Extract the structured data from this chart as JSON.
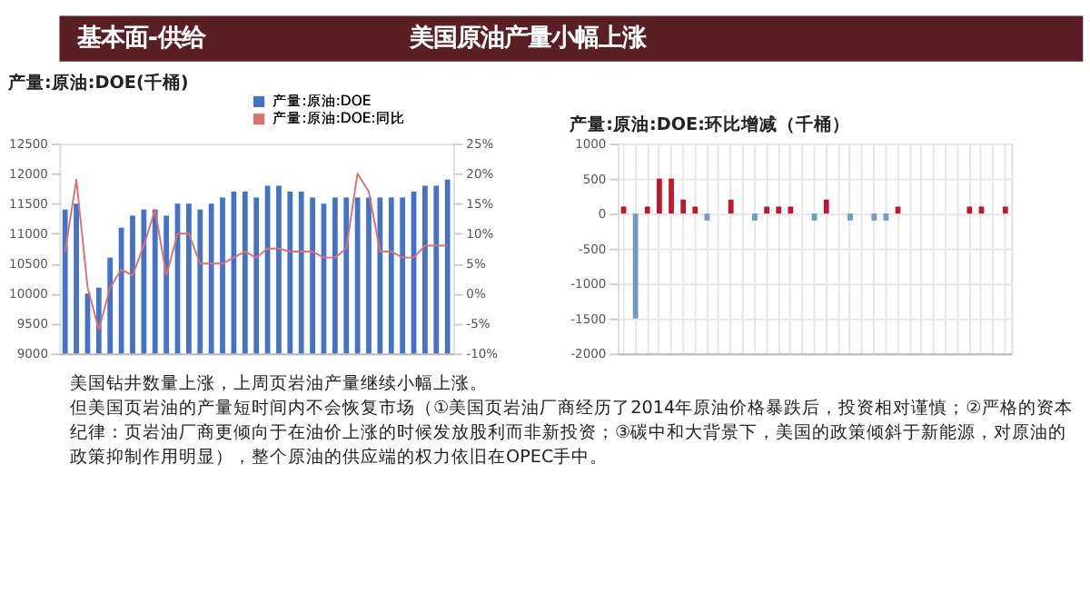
{
  "chart_data": [
    {
      "type": "other",
      "annotations": [
        "基本面-供给",
        "美国原油产量小幅上涨"
      ]
    },
    {
      "type": "bar",
      "title": "产量:原油:DOE(千桶)",
      "categories": [
        null,
        null,
        null,
        null,
        null,
        null,
        null,
        null,
        null,
        null,
        null,
        null,
        null,
        null,
        null,
        null,
        null,
        null,
        null,
        null,
        null,
        null,
        null,
        null,
        null,
        null,
        null,
        null,
        null,
        null,
        null,
        null,
        null,
        null,
        null
      ],
      "series": [
        {
          "name": "产量:原油:DOE",
          "type": "bar",
          "color": "#4472c4",
          "values": [
            11400,
            11500,
            10000,
            10100,
            10600,
            11100,
            11300,
            11400,
            11400,
            11300,
            11500,
            11500,
            11400,
            11500,
            11600,
            11700,
            11700,
            11600,
            11800,
            11800,
            11700,
            11700,
            11600,
            11500,
            11600,
            11600,
            11600,
            11600,
            11600,
            11600,
            11600,
            11700,
            11800,
            11800,
            11900
          ]
        },
        {
          "name": "产量:原油:DOE:同比",
          "type": "line",
          "axis": "y2",
          "color": "#e07070",
          "values": [
            7,
            19,
            1,
            -6,
            1,
            4,
            3,
            8,
            14,
            3,
            10,
            10,
            5,
            5,
            5,
            6,
            7,
            6,
            7.5,
            7.5,
            7,
            7,
            7,
            6,
            6,
            7.5,
            20,
            17,
            7,
            7,
            6,
            6,
            8,
            8,
            8
          ]
        }
      ],
      "ylim": [
        9000,
        12500
      ],
      "yticks": [
        9000,
        9500,
        10000,
        10500,
        11000,
        11500,
        12000,
        12500
      ],
      "y2lim": [
        -10,
        25
      ],
      "y2ticks": [
        {
          "value": -10,
          "label": "-10%"
        },
        {
          "value": -5,
          "label": "-5%"
        },
        {
          "value": 0,
          "label": "0%"
        },
        {
          "value": 5,
          "label": "5%"
        },
        {
          "value": 10,
          "label": "10%"
        },
        {
          "value": 15,
          "label": "15%"
        },
        {
          "value": 20,
          "label": "20%"
        },
        {
          "value": 25,
          "label": "25%"
        }
      ],
      "legend": "top",
      "tick_labels": "y"
    },
    {
      "type": "bar",
      "title": "产量:原油:DOE:环比增减（千桶）",
      "categories": [
        null,
        null,
        null,
        null,
        null,
        null,
        null,
        null,
        null,
        null,
        null,
        null,
        null,
        null,
        null,
        null,
        null,
        null,
        null,
        null,
        null,
        null,
        null,
        null,
        null,
        null,
        null,
        null,
        null,
        null,
        null,
        null,
        null
      ],
      "values": [
        100,
        -1500,
        100,
        500,
        500,
        200,
        100,
        -100,
        0,
        200,
        0,
        -100,
        100,
        100,
        100,
        0,
        -100,
        200,
        0,
        -100,
        0,
        -100,
        -100,
        100,
        0,
        0,
        0,
        0,
        0,
        100,
        100,
        0,
        100
      ],
      "colors": [
        "#c0172c",
        "#6f9cc4",
        "#c0172c",
        "#c0172c",
        "#c0172c",
        "#c0172c",
        "#c0172c",
        "#6f9cc4",
        "#c0172c",
        "#c0172c",
        "#c0172c",
        "#6f9cc4",
        "#c0172c",
        "#c0172c",
        "#c0172c",
        "#c0172c",
        "#6f9cc4",
        "#c0172c",
        "#c0172c",
        "#6f9cc4",
        "#c0172c",
        "#6f9cc4",
        "#6f9cc4",
        "#c0172c",
        "#c0172c",
        "#c0172c",
        "#c0172c",
        "#c0172c",
        "#c0172c",
        "#c0172c",
        "#c0172c",
        "#c0172c",
        "#c0172c"
      ],
      "ylim": [
        -2000,
        1000
      ],
      "yticks": [
        -2000,
        -1500,
        -1000,
        -500,
        0,
        500,
        1000
      ],
      "grid": true,
      "tick_labels": "y"
    },
    {
      "type": "other",
      "annotations": [
        "美国钻井数量上涨，上周页岩油产量继续小幅上涨。",
        "但美国页岩油的产量短时间内不会恢复市场（①美国页岩油厂商经历了2014年原油价格暴跌后，投资相对谨慎；②严格的资本",
        "纪律：页岩油厂商更倾向于在油价上涨的时候发放股利而非新投资；③碳中和大背景下，美国的政策倾斜于新能源，对原油的",
        "政策抑制作用明显），整个原油的供应端的权力依旧在OPEC手中。"
      ]
    }
  ]
}
